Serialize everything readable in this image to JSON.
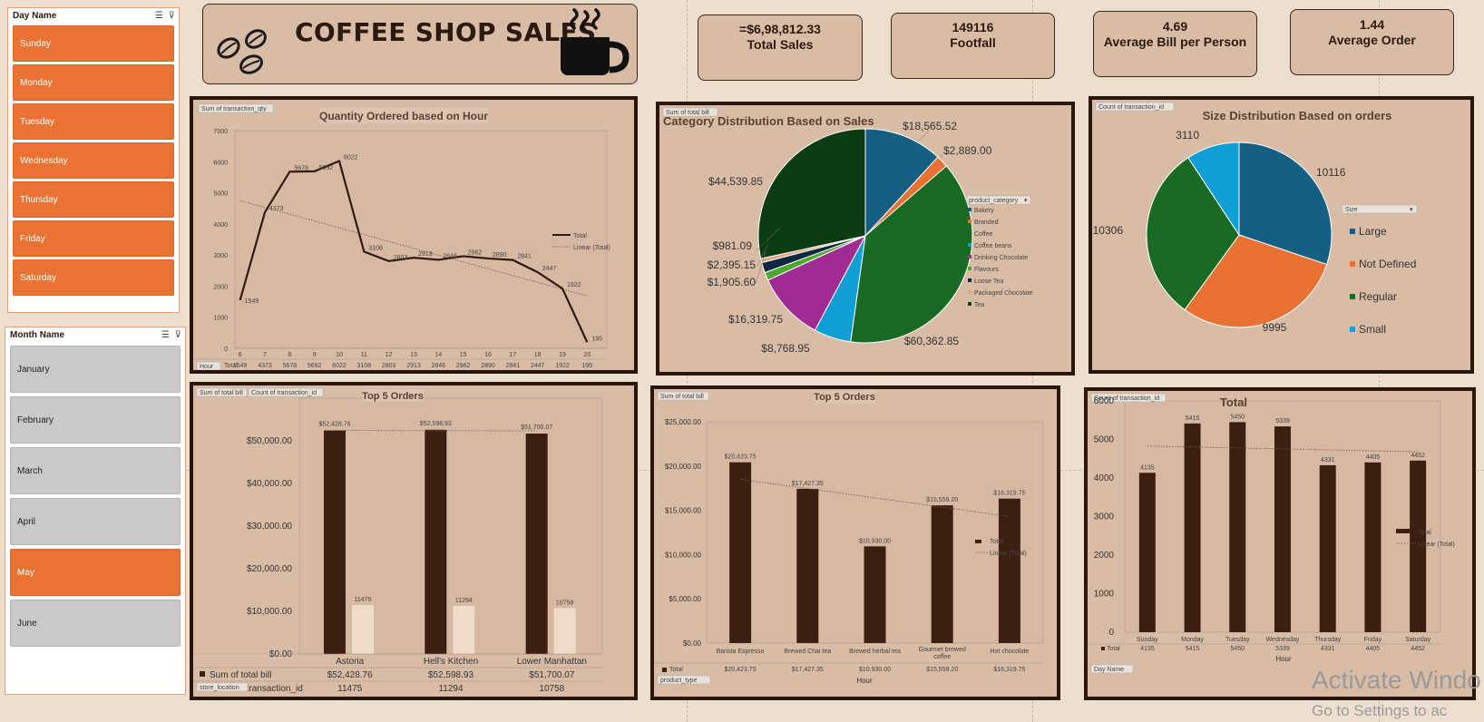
{
  "day_slicer": {
    "title": "Day Name",
    "items": [
      "Sunday",
      "Monday",
      "Tuesday",
      "Wednesday",
      "Thursday",
      "Friday",
      "Saturday"
    ],
    "selected": [
      true,
      true,
      true,
      true,
      true,
      true,
      true
    ]
  },
  "month_slicer": {
    "title": "Month Name",
    "items": [
      "January",
      "February",
      "March",
      "April",
      "May",
      "June"
    ],
    "selected": [
      false,
      false,
      false,
      false,
      true,
      false
    ]
  },
  "header": {
    "title": "COFFEE SHOP SALES"
  },
  "kpis": [
    {
      "value": "=$6,98,812.33",
      "label": "Total Sales"
    },
    {
      "value": "149116",
      "label": "Footfall"
    },
    {
      "value": "4.69",
      "label": "Average Bill per Person"
    },
    {
      "value": "1.44",
      "label": "Average Order"
    }
  ],
  "colors": {
    "dark_bar": "#3b1f10",
    "light_bar": "#ecdcc8",
    "panel": "#d9bca6",
    "slicer_on": "#ea7232"
  },
  "watermark": {
    "line1": "Activate Windo",
    "line2": "Go to Settings to ac"
  },
  "chart_data": [
    {
      "type": "line",
      "title": "Quantity Ordered based on Hour",
      "field_button": "Sum of transaction_qty",
      "axis_button": "Hour",
      "xlabel": "Hour",
      "x": [
        6,
        7,
        8,
        9,
        10,
        11,
        12,
        13,
        14,
        15,
        16,
        17,
        18,
        19,
        20
      ],
      "values": [
        1549,
        4373,
        5678,
        5692,
        6022,
        3108,
        2803,
        2913,
        2846,
        2962,
        2890,
        2841,
        2447,
        1922,
        195
      ],
      "series_name": "Total",
      "trendline_name": "Linear (Total)",
      "row_label": "Total",
      "ylim": [
        0,
        7000
      ],
      "yticks": [
        0,
        1000,
        2000,
        3000,
        4000,
        5000,
        6000,
        7000
      ]
    },
    {
      "type": "pie",
      "title": "Category Distribution Based on Sales",
      "field_button": "Sum of total bill",
      "legend_title": "product_category",
      "legend_position": "right",
      "categories": [
        "Bakery",
        "Branded",
        "Coffee",
        "Coffee beans",
        "Drinking Chocolate",
        "Flavours",
        "Loose Tea",
        "Packaged Chocolate",
        "Tea"
      ],
      "values": [
        18565.52,
        2889.0,
        60362.85,
        8768.95,
        16319.75,
        1905.6,
        2395.15,
        981.09,
        44539.85
      ],
      "labels": [
        "$18,565.52",
        "$2,889.00",
        "$60,362.85",
        "$8,768.95",
        "$16,319.75",
        "$1,905.60",
        "$2,395.15",
        "$981.09",
        "$44,539.85"
      ],
      "colors": [
        "#156082",
        "#e97132",
        "#196b24",
        "#0f9ed5",
        "#a02b93",
        "#4ea72e",
        "#0e2841",
        "#e8a27c",
        "#0b3d14"
      ]
    },
    {
      "type": "pie",
      "title": "Size Distribution Based on orders",
      "field_button": "Count of transaction_id",
      "legend_title": "Size",
      "legend_position": "right",
      "categories": [
        "Large",
        "Not Defined",
        "Regular",
        "Small"
      ],
      "values": [
        10116,
        9995,
        10306,
        3110
      ],
      "labels": [
        "10116",
        "9995",
        "10306",
        "3110"
      ],
      "colors": [
        "#156082",
        "#e97132",
        "#196b24",
        "#0f9ed5"
      ]
    },
    {
      "type": "bar",
      "title": "Top 5 Orders",
      "field_buttons": [
        "Sum of total bill",
        "Count of transaction_id"
      ],
      "axis_button": "store_location",
      "categories": [
        "Astoria",
        "Hell's Kitchen",
        "Lower Manhattan"
      ],
      "series": [
        {
          "name": "Sum of total bill",
          "values": [
            52428.76,
            52598.93,
            51700.07
          ],
          "labels": [
            "$52,428.76",
            "$52,598.93",
            "$51,700.07"
          ]
        },
        {
          "name": "Count of transaction_id",
          "values": [
            11475,
            11294,
            10758
          ],
          "labels": [
            "11475",
            "11294",
            "10758"
          ]
        }
      ],
      "table_rows": [
        {
          "name": "Sum of total bill",
          "cells": [
            "$52,428.76",
            "$52,598.93",
            "$51,700.07"
          ]
        },
        {
          "name": "Count of transaction_id",
          "cells": [
            "11475",
            "11294",
            "10758"
          ]
        }
      ],
      "ylim": [
        0,
        60000
      ],
      "yticks": [
        "$0.00",
        "$10,000.00",
        "$20,000.00",
        "$30,000.00",
        "$40,000.00",
        "$50,000.00"
      ]
    },
    {
      "type": "bar",
      "title": "Top 5 Orders",
      "field_button": "Sum of total bill",
      "axis_button": "product_type",
      "xlabel": "Hour",
      "categories": [
        "Barista Espresso",
        "Brewed Chai tea",
        "Brewed herbal tea",
        "Gourmet brewed coffee",
        "Hot chocolate"
      ],
      "values": [
        20423.75,
        17427.35,
        10930.0,
        15559.2,
        16319.75
      ],
      "labels": [
        "$20,423.75",
        "$17,427.35",
        "$10,930.00",
        "$15,559.20",
        "$16,319.75"
      ],
      "series_name": "Total",
      "trendline_name": "Linear (Total)",
      "row_label": "Total",
      "ylim": [
        0,
        25000
      ],
      "yticks": [
        "$0.00",
        "$5,000.00",
        "$10,000.00",
        "$15,000.00",
        "$20,000.00",
        "$25,000.00"
      ]
    },
    {
      "type": "bar",
      "title": "Total",
      "field_button": "Count of transaction_id",
      "axis_button": "Day Name",
      "xlabel": "Hour",
      "categories": [
        "Sunday",
        "Monday",
        "Tuesday",
        "Wednesday",
        "Thursday",
        "Friday",
        "Saturday"
      ],
      "values": [
        4135,
        5415,
        5450,
        5339,
        4331,
        4405,
        4452
      ],
      "series_name": "Total",
      "trendline_name": "Linear (Total)",
      "row_label": "Total",
      "ylim": [
        0,
        6000
      ],
      "yticks": [
        0,
        1000,
        2000,
        3000,
        4000,
        5000,
        6000
      ]
    }
  ]
}
